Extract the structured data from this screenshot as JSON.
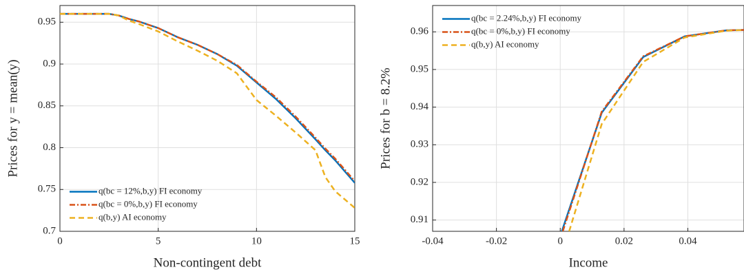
{
  "chart_data": [
    {
      "type": "line",
      "xlabel": "Non-contingent debt",
      "ylabel": "Prices for y = mean(y)",
      "x": [
        0,
        1,
        2,
        2.5,
        3,
        3.5,
        4,
        5,
        6,
        7,
        8,
        9,
        10,
        11,
        12,
        13,
        13.5,
        14,
        15
      ],
      "series": [
        {
          "name": "q(bc = 12%,b,y) FI economy",
          "color": "#0072bd",
          "dash": "solid",
          "values": [
            0.96,
            0.96,
            0.96,
            0.96,
            0.958,
            0.954,
            0.951,
            0.943,
            0.932,
            0.923,
            0.912,
            0.898,
            0.878,
            0.858,
            0.835,
            0.81,
            0.797,
            0.785,
            0.758
          ]
        },
        {
          "name": "q(bc = 0%,b,y) FI economy",
          "color": "#d95319",
          "dash": "dashdot",
          "values": [
            0.96,
            0.96,
            0.96,
            0.96,
            0.958,
            0.954,
            0.951,
            0.943,
            0.932,
            0.923,
            0.912,
            0.899,
            0.879,
            0.86,
            0.837,
            0.812,
            0.799,
            0.787,
            0.76
          ]
        },
        {
          "name": "q(b,y) AI economy",
          "color": "#edb120",
          "dash": "dashed",
          "values": [
            0.96,
            0.96,
            0.96,
            0.96,
            0.958,
            0.952,
            0.948,
            0.939,
            0.927,
            0.916,
            0.904,
            0.889,
            0.857,
            0.838,
            0.818,
            0.797,
            0.765,
            0.748,
            0.728
          ]
        }
      ],
      "xlim": [
        0,
        15
      ],
      "xticks": [
        0,
        5,
        10,
        15
      ],
      "ylim": [
        0.7,
        0.97
      ],
      "yticks": [
        0.7,
        0.75,
        0.8,
        0.85,
        0.9,
        0.95
      ],
      "grid": true,
      "legend": "lower left"
    },
    {
      "type": "line",
      "xlabel": "Income",
      "ylabel": "Prices for b = 8.2%",
      "series": [
        {
          "name": "q(bc = 2.24%,b,y) FI economy",
          "color": "#0072bd",
          "dash": "solid",
          "x": [
            0.0005,
            0.013,
            0.026,
            0.039,
            0.052,
            0.0576
          ],
          "values": [
            0.907,
            0.9385,
            0.9533,
            0.9588,
            0.9604,
            0.9605
          ]
        },
        {
          "name": "q(bc = 0%,b,y) FI economy",
          "color": "#d95319",
          "dash": "dashdot",
          "x": [
            0.0008,
            0.013,
            0.026,
            0.039,
            0.052,
            0.0576
          ],
          "values": [
            0.907,
            0.9388,
            0.9535,
            0.9588,
            0.9604,
            0.9605
          ]
        },
        {
          "name": "q(b,y) AI economy",
          "color": "#edb120",
          "dash": "dashed",
          "x": [
            0.0028,
            0.013,
            0.026,
            0.039,
            0.052,
            0.0576
          ],
          "values": [
            0.907,
            0.9355,
            0.952,
            0.9585,
            0.9603,
            0.9605
          ]
        }
      ],
      "xlim": [
        -0.04,
        0.0576
      ],
      "xticks": [
        -0.04,
        -0.02,
        0,
        0.02,
        0.04
      ],
      "ylim": [
        0.907,
        0.967
      ],
      "yticks": [
        0.91,
        0.92,
        0.93,
        0.94,
        0.95,
        0.96
      ],
      "grid": true,
      "legend": "upper left"
    }
  ]
}
